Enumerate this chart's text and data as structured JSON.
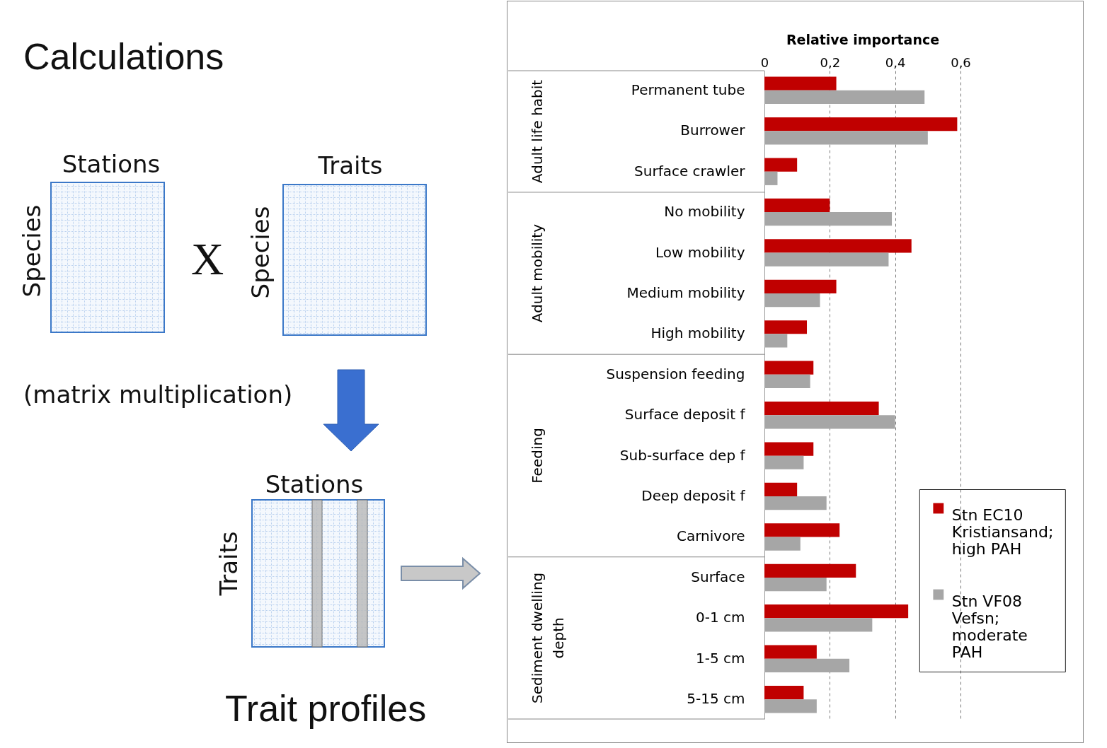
{
  "chart_data": {
    "type": "bar",
    "orientation": "horizontal",
    "xlabel": "Relative importance",
    "categories": [
      "Permanent tube",
      "Burrower",
      "Surface crawler",
      "No mobility",
      "Low mobility",
      "Medium mobility",
      "High mobility",
      "Suspension feeding",
      "Surface deposit f",
      "Sub-surface dep f",
      "Deep deposit f",
      "Carnivore",
      "Surface",
      "0-1 cm",
      "1-5 cm",
      "5-15 cm"
    ],
    "series": [
      {
        "name": "Stn EC10 Kristiansand; high PAH",
        "color": "#c00000",
        "values": [
          0.22,
          0.59,
          0.1,
          0.2,
          0.45,
          0.22,
          0.13,
          0.15,
          0.35,
          0.15,
          0.1,
          0.23,
          0.28,
          0.44,
          0.16,
          0.12
        ]
      },
      {
        "name": "Stn VF08 Vefsn; moderate PAH",
        "color": "#a6a6a6",
        "values": [
          0.49,
          0.5,
          0.04,
          0.39,
          0.38,
          0.17,
          0.07,
          0.14,
          0.4,
          0.12,
          0.19,
          0.11,
          0.19,
          0.33,
          0.26,
          0.16
        ]
      }
    ],
    "xlim": [
      0,
      0.6
    ],
    "xticks": [
      0,
      {
        "value": 0.2,
        "label": "0,2"
      },
      {
        "value": 0.4,
        "label": "0,4"
      },
      {
        "value": 0.6,
        "label": "0,6"
      }
    ],
    "grid": "x",
    "legend": "bottom right",
    "annotations": [
      "Adult life habit",
      "Adult mobility",
      "Feeding",
      "Sediment dwelling depth",
      "Calculations",
      "Stations",
      "Species",
      "X",
      "Species",
      "Traits",
      "(matrix multiplication)",
      "Stations",
      "Traits",
      "Trait profiles"
    ]
  }
}
